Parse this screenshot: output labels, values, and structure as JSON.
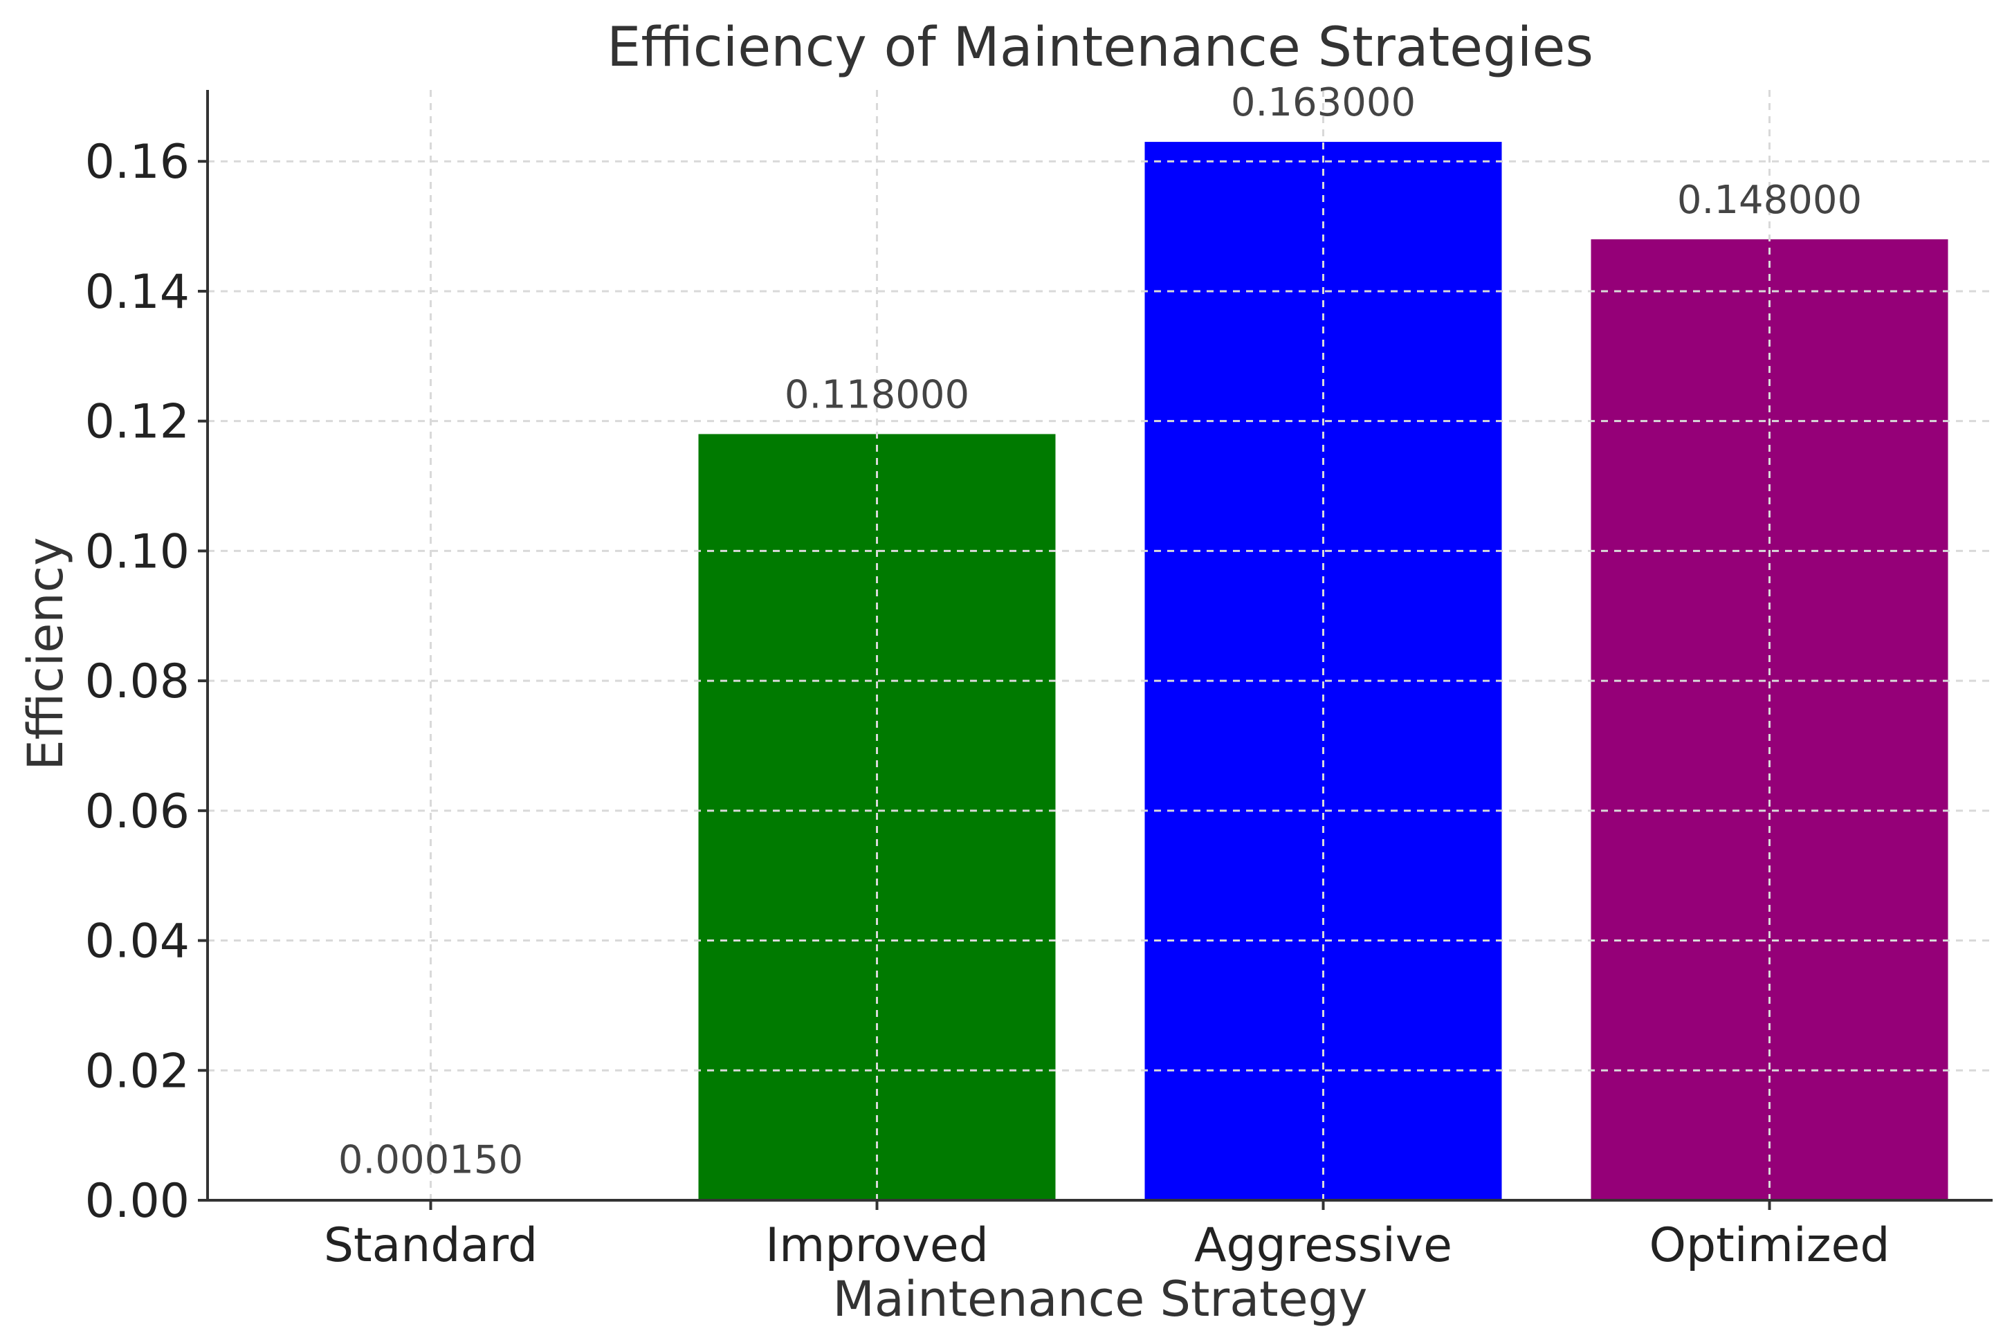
{
  "chart_data": {
    "type": "bar",
    "title": "Efficiency of Maintenance Strategies",
    "xlabel": "Maintenance Strategy",
    "ylabel": "Efficiency",
    "categories": [
      "Standard",
      "Improved",
      "Aggressive",
      "Optimized"
    ],
    "values": [
      0.00015,
      0.118,
      0.163,
      0.148
    ],
    "value_labels": [
      "0.000150",
      "0.118000",
      "0.163000",
      "0.148000"
    ],
    "colors": [
      "#ffffff",
      "#007a00",
      "#0000ff",
      "#950078"
    ],
    "y_ticks": [
      0.0,
      0.02,
      0.04,
      0.06,
      0.08,
      0.1,
      0.12,
      0.14,
      0.16
    ],
    "y_tick_labels": [
      "0.00",
      "0.02",
      "0.04",
      "0.06",
      "0.08",
      "0.10",
      "0.12",
      "0.14",
      "0.16"
    ],
    "ylim": [
      0,
      0.171
    ],
    "grid": true
  }
}
